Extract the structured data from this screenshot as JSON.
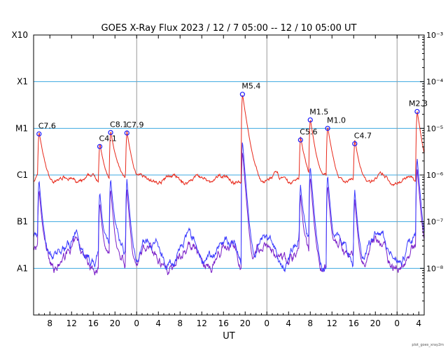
{
  "chart_data": {
    "type": "line",
    "title": "GOES X-Ray Flux   2023 / 12 /  7   05:00 -- 12 / 10   05:00   UT",
    "xlabel": "UT",
    "footer": "plot_goes_xray2m",
    "x_range_hours": [
      0,
      72
    ],
    "x_ticks": [
      {
        "h": 3,
        "label": "8"
      },
      {
        "h": 7,
        "label": "12"
      },
      {
        "h": 11,
        "label": "16"
      },
      {
        "h": 15,
        "label": "20"
      },
      {
        "h": 19,
        "label": "0"
      },
      {
        "h": 23,
        "label": "4"
      },
      {
        "h": 27,
        "label": "8"
      },
      {
        "h": 31,
        "label": "12"
      },
      {
        "h": 35,
        "label": "16"
      },
      {
        "h": 39,
        "label": "20"
      },
      {
        "h": 43,
        "label": "0"
      },
      {
        "h": 47,
        "label": "4"
      },
      {
        "h": 51,
        "label": "8"
      },
      {
        "h": 55,
        "label": "12"
      },
      {
        "h": 59,
        "label": "16"
      },
      {
        "h": 63,
        "label": "20"
      },
      {
        "h": 67,
        "label": "0"
      },
      {
        "h": 71,
        "label": "4"
      }
    ],
    "day_boundaries_hours": [
      19,
      43,
      67
    ],
    "y_scale": "log",
    "y_range_exp": [
      -9,
      -3
    ],
    "class_labels": [
      {
        "exp": -8,
        "label": "A1"
      },
      {
        "exp": -7,
        "label": "B1"
      },
      {
        "exp": -6,
        "label": "C1"
      },
      {
        "exp": -5,
        "label": "M1"
      },
      {
        "exp": -4,
        "label": "X1"
      },
      {
        "exp": -3,
        "label": "X10"
      }
    ],
    "right_labels": [
      {
        "exp": -3,
        "label": "10⁻³"
      },
      {
        "exp": -4,
        "label": "10⁻⁴"
      },
      {
        "exp": -5,
        "label": "10⁻⁵"
      },
      {
        "exp": -6,
        "label": "10⁻⁶"
      },
      {
        "exp": -7,
        "label": "10⁻⁷"
      },
      {
        "exp": -8,
        "label": "10⁻⁸"
      }
    ],
    "grid_lines_exp": [
      -8,
      -7,
      -6,
      -5,
      -4
    ],
    "colors": {
      "long": "#e8281a",
      "short1": "#3b3bff",
      "short2": "#7a1fc8",
      "grid": "#3ea9e0",
      "day": "#999999",
      "marker": "#1a1aff"
    },
    "flares": [
      {
        "h": 1.0,
        "label": "C7.6",
        "exp": -5.12
      },
      {
        "h": 12.2,
        "label": "C4.1",
        "exp": -5.39
      },
      {
        "h": 14.2,
        "label": "C8.1",
        "exp": -5.09
      },
      {
        "h": 17.2,
        "label": "C7.9",
        "exp": -5.1
      },
      {
        "h": 38.5,
        "label": "M5.4",
        "exp": -4.27
      },
      {
        "h": 49.2,
        "label": "C5.6",
        "exp": -5.25
      },
      {
        "h": 51.0,
        "label": "M1.5",
        "exp": -4.82
      },
      {
        "h": 54.2,
        "label": "M1.0",
        "exp": -5.0
      },
      {
        "h": 59.2,
        "label": "C4.7",
        "exp": -5.33
      },
      {
        "h": 70.7,
        "label": "M2.3",
        "exp": -4.64
      }
    ],
    "series": [
      {
        "key": "long",
        "background_exp": -6.1
      },
      {
        "key": "short1",
        "background_exp": -7.6
      },
      {
        "key": "short2",
        "background_exp": -7.75
      }
    ]
  }
}
